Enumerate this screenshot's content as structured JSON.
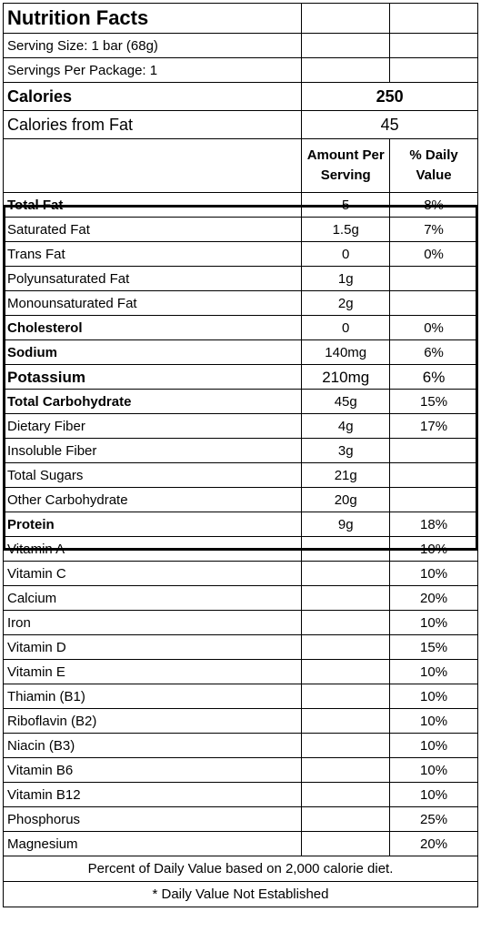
{
  "title": "Nutrition Facts",
  "serving_size": "Serving Size: 1 bar (68g)",
  "servings_per_package": "Servings Per Package: 1",
  "calories": {
    "label": "Calories",
    "value": "250"
  },
  "calories_from_fat": {
    "label": "Calories from Fat",
    "value": "45"
  },
  "header": {
    "amount": "Amount Per Serving",
    "daily_value": "% Daily Value"
  },
  "nutrients": [
    {
      "label": "Total Fat",
      "amount": "5",
      "dv": "8%"
    },
    {
      "label": "Saturated Fat",
      "amount": "1.5g",
      "dv": "7%"
    },
    {
      "label": "Trans Fat",
      "amount": "0",
      "dv": "0%"
    },
    {
      "label": "Polyunsaturated Fat",
      "amount": "1g",
      "dv": ""
    },
    {
      "label": "Monounsaturated Fat",
      "amount": "2g",
      "dv": ""
    },
    {
      "label": "Cholesterol",
      "amount": "0",
      "dv": "0%"
    },
    {
      "label": "Sodium",
      "amount": "140mg",
      "dv": "6%"
    },
    {
      "label": "Potassium",
      "amount": "210mg",
      "dv": "6%"
    },
    {
      "label": "Total Carbohydrate",
      "amount": "45g",
      "dv": "15%"
    },
    {
      "label": "Dietary Fiber",
      "amount": "4g",
      "dv": "17%"
    },
    {
      "label": "Insoluble Fiber",
      "amount": "3g",
      "dv": ""
    },
    {
      "label": "Total Sugars",
      "amount": "21g",
      "dv": ""
    },
    {
      "label": "Other Carbohydrate",
      "amount": "20g",
      "dv": ""
    },
    {
      "label": "Protein",
      "amount": "9g",
      "dv": "18%"
    }
  ],
  "vitamins": [
    {
      "label": "Vitamin A",
      "dv": "10%"
    },
    {
      "label": "Vitamin C",
      "dv": "10%"
    },
    {
      "label": "Calcium",
      "dv": "20%"
    },
    {
      "label": "Iron",
      "dv": "10%"
    },
    {
      "label": "Vitamin D",
      "dv": "15%"
    },
    {
      "label": "Vitamin E",
      "dv": "10%"
    },
    {
      "label": "Thiamin (B1)",
      "dv": "10%"
    },
    {
      "label": "Riboflavin (B2)",
      "dv": "10%"
    },
    {
      "label": "Niacin (B3)",
      "dv": "10%"
    },
    {
      "label": "Vitamin B6",
      "dv": "10%"
    },
    {
      "label": "Vitamin B12",
      "dv": "10%"
    },
    {
      "label": "Phosphorus",
      "dv": "25%"
    },
    {
      "label": "Magnesium",
      "dv": "20%"
    }
  ],
  "footnotes": {
    "daily_value_basis": "Percent of Daily Value based on 2,000 calorie diet.",
    "not_established": "* Daily Value Not Established"
  }
}
